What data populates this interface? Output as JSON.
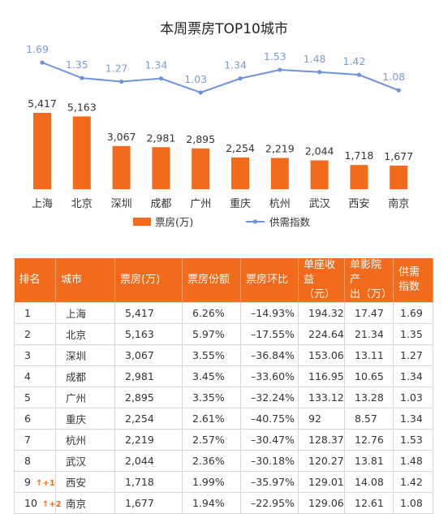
{
  "chart_data": {
    "type": "bar+line",
    "title": "本周票房TOP10城市",
    "categories": [
      "上海",
      "北京",
      "深圳",
      "成都",
      "广州",
      "重庆",
      "杭州",
      "武汉",
      "西安",
      "南京"
    ],
    "series": [
      {
        "name": "票房(万)",
        "type": "bar",
        "values": [
          5417,
          5163,
          3067,
          2981,
          2895,
          2254,
          2219,
          2044,
          1718,
          1677
        ],
        "labels": [
          "5,417",
          "5,163",
          "3,067",
          "2,981",
          "2,895",
          "2,254",
          "2,219",
          "2,044",
          "1,718",
          "1,677"
        ]
      },
      {
        "name": "供需指数",
        "type": "line",
        "values": [
          1.69,
          1.35,
          1.27,
          1.34,
          1.03,
          1.34,
          1.53,
          1.48,
          1.42,
          1.08
        ],
        "labels": [
          "1.69",
          "1.35",
          "1.27",
          "1.34",
          "1.03",
          "1.34",
          "1.53",
          "1.48",
          "1.42",
          "1.08"
        ]
      }
    ],
    "legend_position": "bottom",
    "colors": {
      "bar": "#F26A1B",
      "line": "#6E93D8",
      "line_label": "#7A9CD9"
    }
  },
  "table": {
    "headers": [
      [
        "排名"
      ],
      [
        "城市"
      ],
      [
        "票房(万)"
      ],
      [
        "票房份额"
      ],
      [
        "票房环比"
      ],
      [
        "单座收",
        "益（元）"
      ],
      [
        "单影院产",
        "出（万）"
      ],
      [
        "供需",
        "指数"
      ]
    ],
    "rows": [
      {
        "rank": "1",
        "badge": "",
        "cells": [
          "上海",
          "5,417",
          "6.26%",
          "–14.93%",
          "194.32",
          "17.47",
          "1.69"
        ]
      },
      {
        "rank": "2",
        "badge": "",
        "cells": [
          "北京",
          "5,163",
          "5.97%",
          "–17.55%",
          "224.64",
          "21.34",
          "1.35"
        ]
      },
      {
        "rank": "3",
        "badge": "",
        "cells": [
          "深圳",
          "3,067",
          "3.55%",
          "–36.84%",
          "153.06",
          "13.11",
          "1.27"
        ]
      },
      {
        "rank": "4",
        "badge": "",
        "cells": [
          "成都",
          "2,981",
          "3.45%",
          "–33.60%",
          "116.95",
          "10.65",
          "1.34"
        ]
      },
      {
        "rank": "5",
        "badge": "",
        "cells": [
          "广州",
          "2,895",
          "3.35%",
          "–32.24%",
          "133.12",
          "13.28",
          "1.03"
        ]
      },
      {
        "rank": "6",
        "badge": "",
        "cells": [
          "重庆",
          "2,254",
          "2.61%",
          "–40.75%",
          "92",
          "8.57",
          "1.34"
        ]
      },
      {
        "rank": "7",
        "badge": "",
        "cells": [
          "杭州",
          "2,219",
          "2.57%",
          "–30.47%",
          "128.37",
          "12.76",
          "1.53"
        ]
      },
      {
        "rank": "8",
        "badge": "",
        "cells": [
          "武汉",
          "2,044",
          "2.36%",
          "–30.18%",
          "120.27",
          "13.81",
          "1.48"
        ]
      },
      {
        "rank": "9",
        "badge": "↑+1",
        "cells": [
          "西安",
          "1,718",
          "1.99%",
          "–35.97%",
          "129.01",
          "14.08",
          "1.42"
        ]
      },
      {
        "rank": "10",
        "badge": "↑+2",
        "cells": [
          "南京",
          "1,677",
          "1.94%",
          "–22.95%",
          "129.06",
          "12.61",
          "1.08"
        ]
      }
    ]
  }
}
